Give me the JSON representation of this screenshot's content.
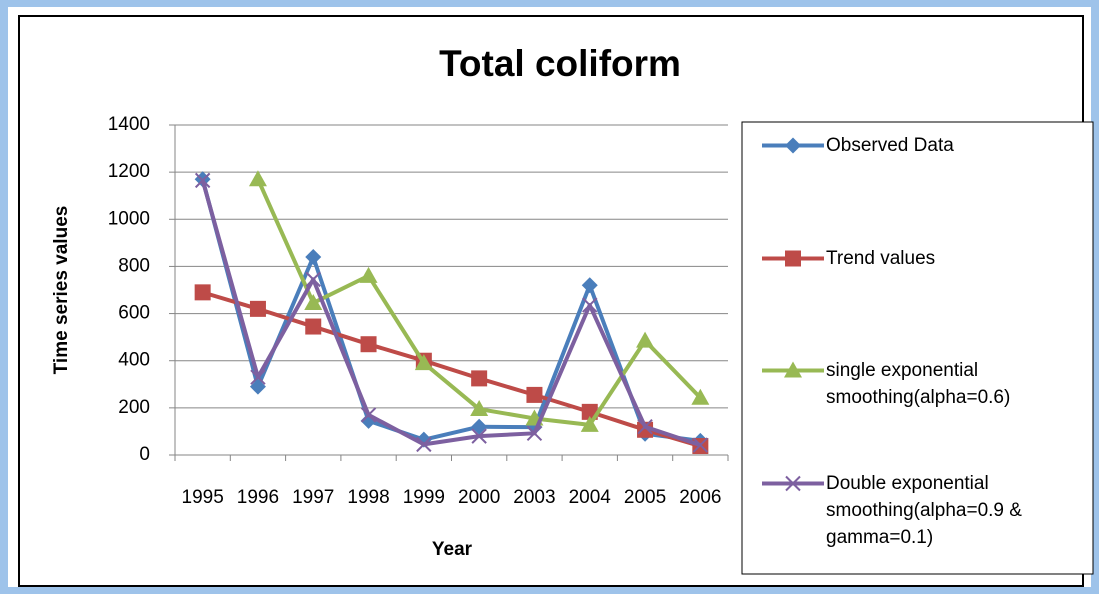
{
  "chart_data": {
    "type": "line",
    "title": "Total coliform",
    "x_label": "Year",
    "y_label": "Time series values",
    "categories": [
      "1995",
      "1996",
      "1997",
      "1998",
      "1999",
      "2000",
      "2003",
      "2004",
      "2005",
      "2006"
    ],
    "ylim": [
      0,
      1400
    ],
    "yticks": [
      0,
      200,
      400,
      600,
      800,
      1000,
      1200,
      1400
    ],
    "grid": true,
    "legend": "right",
    "series": [
      {
        "name": "Observed Data",
        "color": "#4a7ebb",
        "marker": "diamond",
        "values": [
          1170,
          290,
          840,
          145,
          65,
          120,
          118,
          720,
          90,
          60
        ]
      },
      {
        "name": "Trend values",
        "color": "#be4b48",
        "marker": "square",
        "values": [
          690,
          620,
          545,
          470,
          400,
          325,
          255,
          183,
          107,
          38
        ]
      },
      {
        "name": "single exponential smoothing(alpha=0.6)",
        "color": "#98b954",
        "marker": "triangle",
        "values": [
          null,
          1170,
          645,
          760,
          390,
          195,
          155,
          128,
          485,
          243
        ]
      },
      {
        "name": "Double exponential smoothing(alpha=0.9 & gamma=0.1)",
        "color": "#7d60a0",
        "marker": "x",
        "values": [
          1165,
          330,
          745,
          170,
          45,
          80,
          92,
          636,
          120,
          42
        ]
      }
    ]
  }
}
